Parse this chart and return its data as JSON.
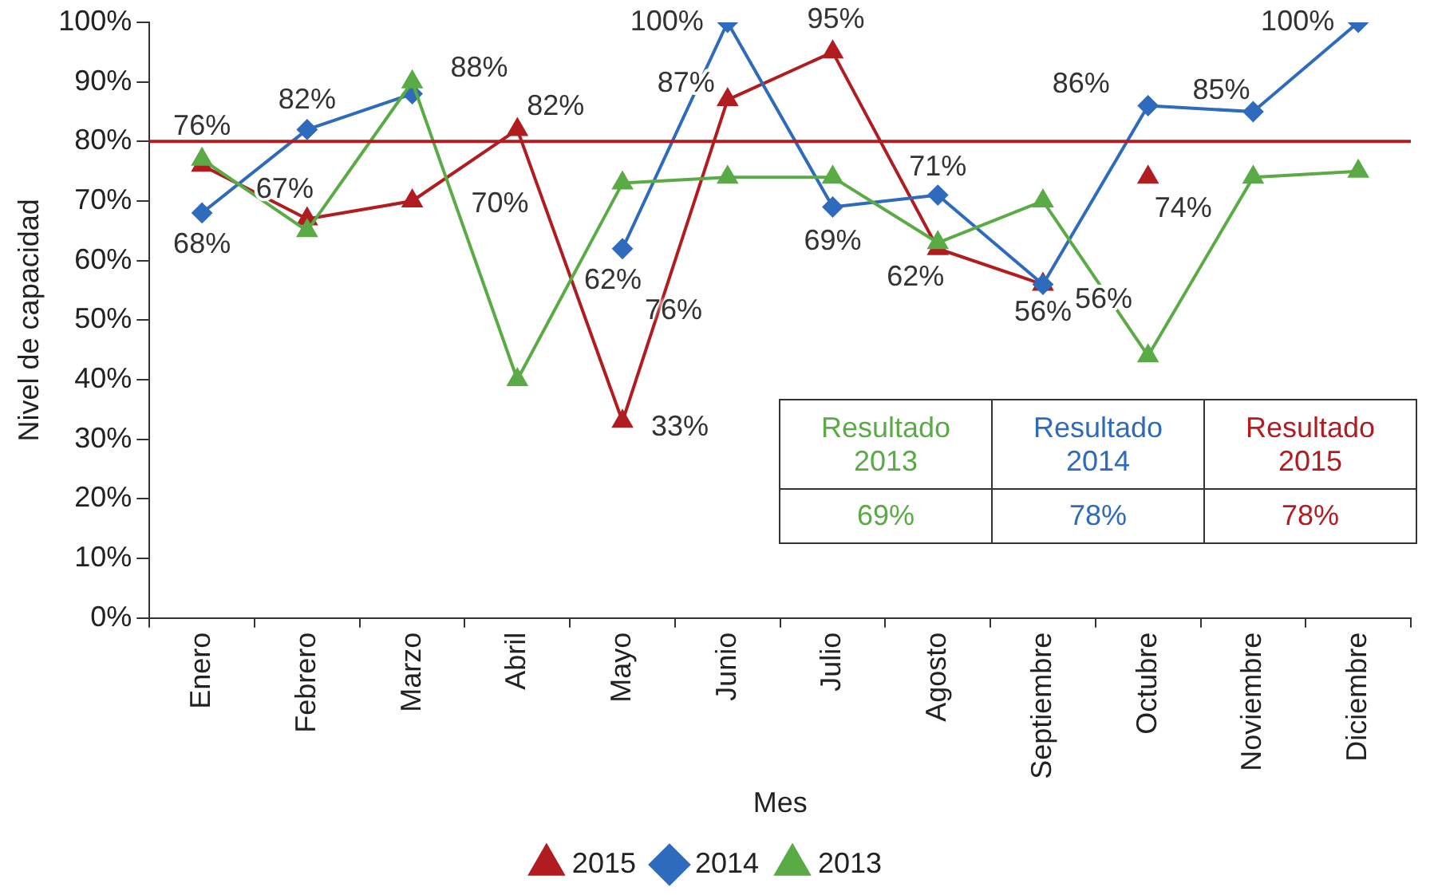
{
  "chart_data": {
    "type": "line",
    "xlabel": "Mes",
    "ylabel": "Nivel de capacidad",
    "categories": [
      "Enero",
      "Febrero",
      "Marzo",
      "Abril",
      "Mayo",
      "Junio",
      "Julio",
      "Agosto",
      "Septiembre",
      "Octubre",
      "Noviembre",
      "Diciembre"
    ],
    "series": [
      {
        "name": "2015",
        "color": "#b01c20",
        "marker": "triangle",
        "values": [
          76,
          67,
          70,
          82,
          33,
          87,
          95,
          62,
          56,
          null,
          null,
          null
        ],
        "value_labels": [
          "76%",
          "67%",
          "70%",
          "82%",
          "33%",
          "87%",
          "95%",
          "62%",
          "56%",
          null,
          null,
          null
        ]
      },
      {
        "name": "2014",
        "color": "#2f6bbd",
        "marker": "diamond",
        "values": [
          68,
          82,
          88,
          null,
          62,
          100,
          69,
          71,
          56,
          86,
          85,
          100
        ],
        "value_labels": [
          "68%",
          "82%",
          "88%",
          null,
          "62%",
          "100%",
          "69%",
          "71%",
          "56%",
          "86%",
          "85%",
          "100%"
        ]
      },
      {
        "name": "2013",
        "color": "#5aab46",
        "marker": "triangle",
        "values": [
          77,
          65,
          90,
          40,
          73,
          74,
          74,
          63,
          70,
          44,
          74,
          75
        ]
      },
      {
        "type": "scatter",
        "color": "#b01c20",
        "marker": "triangle",
        "values": [
          null,
          null,
          null,
          null,
          null,
          null,
          null,
          null,
          null,
          74,
          null,
          null
        ],
        "value_labels": [
          null,
          null,
          null,
          null,
          null,
          null,
          null,
          null,
          null,
          "74%",
          null,
          null
        ]
      }
    ],
    "ylim": [
      0,
      100
    ],
    "yticks": [
      {
        "value": 0,
        "label": "0%"
      },
      {
        "value": 10,
        "label": "10%"
      },
      {
        "value": 20,
        "label": "20%"
      },
      {
        "value": 30,
        "label": "30%"
      },
      {
        "value": 40,
        "label": "40%"
      },
      {
        "value": 50,
        "label": "50%"
      },
      {
        "value": 60,
        "label": "60%"
      },
      {
        "value": 70,
        "label": "70%"
      },
      {
        "value": 80,
        "label": "80%"
      },
      {
        "value": 90,
        "label": "90%"
      },
      {
        "value": 100,
        "label": "100%"
      }
    ],
    "ref_lines": [
      {
        "axis": "y",
        "value": 80,
        "color": "#b01c20"
      }
    ],
    "annotations": [
      "76%",
      "Resultado 2013",
      "Resultado 2014",
      "Resultado 2015",
      "69%",
      "78%",
      "78%"
    ],
    "grid": false,
    "legend": "bottom",
    "line_style": "solid"
  }
}
